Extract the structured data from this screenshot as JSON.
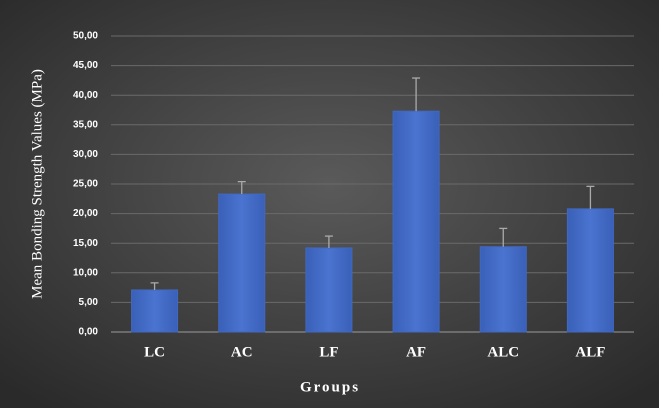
{
  "chart_data": {
    "type": "bar",
    "categories": [
      "LC",
      "AC",
      "LF",
      "AF",
      "ALC",
      "ALF"
    ],
    "values": [
      7.1,
      23.3,
      14.2,
      37.3,
      14.4,
      20.8
    ],
    "errors": [
      1.2,
      2.1,
      2.0,
      5.6,
      3.1,
      3.8
    ],
    "color": "#4169c1",
    "ylabel": "Mean Bonding Strength Values (MPa)",
    "xlabel": "Groups",
    "ylim": [
      0,
      50
    ],
    "yticks": [
      {
        "value": 0,
        "label": "0,00"
      },
      {
        "value": 5,
        "label": "5,00"
      },
      {
        "value": 10,
        "label": "10,00"
      },
      {
        "value": 15,
        "label": "15,00"
      },
      {
        "value": 20,
        "label": "20,00"
      },
      {
        "value": 25,
        "label": "25,00"
      },
      {
        "value": 30,
        "label": "30,00"
      },
      {
        "value": 35,
        "label": "35,00"
      },
      {
        "value": 40,
        "label": "40,00"
      },
      {
        "value": 45,
        "label": "45,00"
      },
      {
        "value": 50,
        "label": "50,00"
      }
    ],
    "grid": true
  }
}
